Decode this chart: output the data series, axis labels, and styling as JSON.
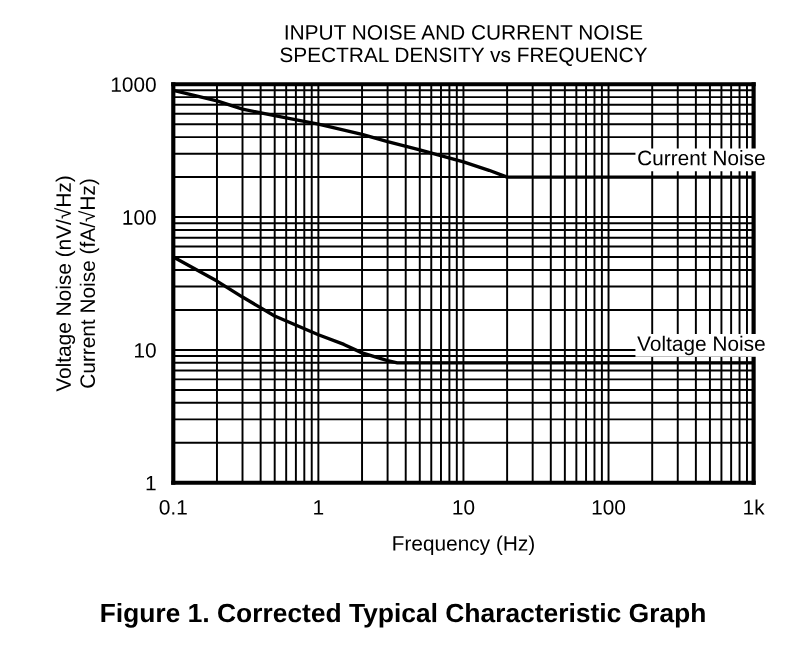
{
  "chart_data": {
    "type": "line",
    "title": "INPUT NOISE AND CURRENT NOISE\nSPECTRAL DENSITY vs FREQUENCY",
    "xlabel": "Frequency (Hz)",
    "ylabel": "Voltage Noise (nV/√Hz)\nCurrent Noise (fA/√Hz)",
    "log": "xy",
    "xlim": [
      0.1,
      1000
    ],
    "ylim": [
      1,
      1000
    ],
    "xticks": [
      0.1,
      1,
      10,
      100,
      {
        "value": 1000,
        "label": "1k"
      }
    ],
    "yticks": [
      1,
      10,
      100,
      1000
    ],
    "grid": true,
    "legend": false,
    "marker": "none",
    "line_style": "solid",
    "series": [
      {
        "name": "Current Noise",
        "color": "#000000",
        "x": [
          0.1,
          0.2,
          0.3,
          0.5,
          1,
          2,
          3,
          5,
          10,
          15,
          20,
          1000
        ],
        "values": [
          900,
          750,
          650,
          580,
          500,
          420,
          370,
          320,
          260,
          225,
          200,
          200
        ]
      },
      {
        "name": "Voltage Noise",
        "color": "#000000",
        "x": [
          0.1,
          0.2,
          0.3,
          0.5,
          1,
          1.5,
          2,
          3,
          3.5,
          1000
        ],
        "values": [
          50,
          33,
          25,
          18,
          13,
          11,
          9.5,
          8.3,
          8,
          8
        ]
      }
    ],
    "annotations": [
      "Figure 1. Corrected Typical Characteristic Graph"
    ]
  }
}
